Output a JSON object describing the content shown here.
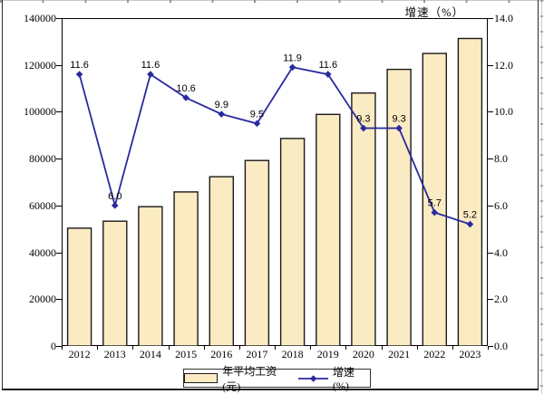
{
  "chart_data": {
    "type": "combo",
    "categories": [
      "2012",
      "2013",
      "2014",
      "2015",
      "2016",
      "2017",
      "2018",
      "2019",
      "2020",
      "2021",
      "2022",
      "2023"
    ],
    "series": [
      {
        "name": "年平均工资(元)",
        "type": "bar",
        "axis": "left",
        "values": [
          50300,
          53300,
          59500,
          65800,
          72300,
          79200,
          88600,
          98900,
          108000,
          118100,
          124900,
          131300
        ]
      },
      {
        "name": "增速(%)",
        "type": "line",
        "axis": "right",
        "values": [
          11.6,
          6.0,
          11.6,
          10.6,
          9.9,
          9.5,
          11.9,
          11.6,
          9.3,
          9.3,
          5.7,
          5.2
        ],
        "point_labels": [
          "11.6",
          "6.0",
          "11.6",
          "10.6",
          "9.9",
          "9.5",
          "11.9",
          "11.6",
          "9.3",
          "9.3",
          "5.7",
          "5.2"
        ]
      }
    ],
    "left_axis": {
      "min": 0,
      "max": 140000,
      "step": 20000,
      "tick_labels": [
        "0",
        "20000",
        "40000",
        "60000",
        "80000",
        "100000",
        "120000",
        "140000"
      ]
    },
    "right_axis": {
      "min": 0,
      "max": 14,
      "step": 2,
      "title": "增速（%）",
      "tick_labels": [
        "0.0",
        "2.0",
        "4.0",
        "6.0",
        "8.0",
        "10.0",
        "12.0",
        "14.0"
      ]
    },
    "legend": {
      "position": "bottom",
      "items": [
        "年平均工资(元)",
        "增速(%)"
      ]
    },
    "grid": false,
    "colors": {
      "bar_fill": "#FAEBC3",
      "bar_border": "#1A1A1A",
      "line": "#2A2AA0",
      "text": "#000000"
    }
  }
}
